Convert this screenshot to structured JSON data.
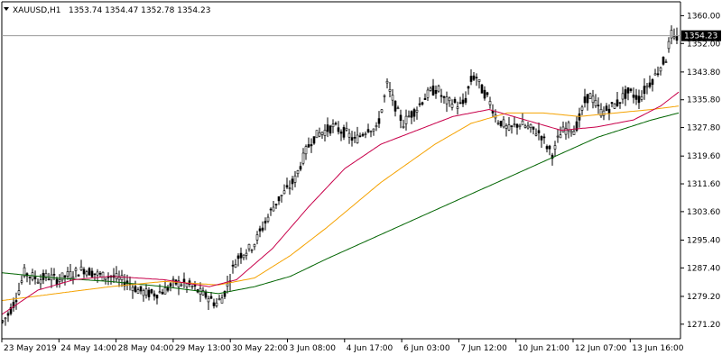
{
  "header": {
    "symbol": "XAUUSD,H1",
    "ohlc": "1353.74 1354.47 1352.78 1354.23"
  },
  "chart_data": {
    "type": "candlestick",
    "title": "XAUUSD,H1",
    "ylim": [
      1267,
      1364
    ],
    "yticks": [
      1360.0,
      1352.0,
      1343.8,
      1335.8,
      1327.8,
      1319.6,
      1311.6,
      1303.6,
      1295.4,
      1287.4,
      1279.2,
      1271.2
    ],
    "ytick_labels": [
      "1360.00",
      "1352.00",
      "1343.80",
      "1335.80",
      "1327.80",
      "1319.60",
      "1311.60",
      "1303.60",
      "1295.40",
      "1287.40",
      "1279.20",
      "1271.20"
    ],
    "current_price": 1354.23,
    "current_price_label": "1354.23",
    "xlabels": [
      "23 May 2019",
      "24 May 14:00",
      "28 May 04:00",
      "29 May 13:00",
      "30 May 22:00",
      "3 Jun 08:00",
      "4 Jun 17:00",
      "6 Jun 03:00",
      "7 Jun 12:00",
      "10 Jun 21:00",
      "12 Jun 07:00",
      "13 Jun 16:00"
    ],
    "price_path": [
      [
        0,
        1272
      ],
      [
        6,
        1274
      ],
      [
        12,
        1277
      ],
      [
        18,
        1281
      ],
      [
        24,
        1286
      ],
      [
        32,
        1285
      ],
      [
        40,
        1284
      ],
      [
        50,
        1285
      ],
      [
        60,
        1284
      ],
      [
        70,
        1285
      ],
      [
        80,
        1286
      ],
      [
        90,
        1287
      ],
      [
        100,
        1286
      ],
      [
        110,
        1285
      ],
      [
        120,
        1285
      ],
      [
        130,
        1284
      ],
      [
        140,
        1283
      ],
      [
        150,
        1281
      ],
      [
        160,
        1280
      ],
      [
        170,
        1280
      ],
      [
        180,
        1281
      ],
      [
        190,
        1283
      ],
      [
        200,
        1283
      ],
      [
        210,
        1282
      ],
      [
        220,
        1280
      ],
      [
        228,
        1279
      ],
      [
        236,
        1277
      ],
      [
        244,
        1279
      ],
      [
        250,
        1283
      ],
      [
        256,
        1288
      ],
      [
        262,
        1291
      ],
      [
        268,
        1292
      ],
      [
        274,
        1293
      ],
      [
        280,
        1295
      ],
      [
        286,
        1298
      ],
      [
        292,
        1301
      ],
      [
        300,
        1305
      ],
      [
        308,
        1308
      ],
      [
        316,
        1310
      ],
      [
        324,
        1313
      ],
      [
        330,
        1317
      ],
      [
        336,
        1321
      ],
      [
        342,
        1324
      ],
      [
        350,
        1326
      ],
      [
        358,
        1327
      ],
      [
        366,
        1328
      ],
      [
        374,
        1327
      ],
      [
        382,
        1326
      ],
      [
        390,
        1324
      ],
      [
        398,
        1326
      ],
      [
        406,
        1328
      ],
      [
        414,
        1327
      ],
      [
        420,
        1333
      ],
      [
        426,
        1340
      ],
      [
        432,
        1336
      ],
      [
        438,
        1332
      ],
      [
        444,
        1329
      ],
      [
        450,
        1331
      ],
      [
        458,
        1333
      ],
      [
        466,
        1336
      ],
      [
        474,
        1338
      ],
      [
        482,
        1339
      ],
      [
        488,
        1336
      ],
      [
        494,
        1335
      ],
      [
        500,
        1335
      ],
      [
        506,
        1334
      ],
      [
        512,
        1335
      ],
      [
        518,
        1341
      ],
      [
        524,
        1343
      ],
      [
        530,
        1339
      ],
      [
        536,
        1337
      ],
      [
        542,
        1334
      ],
      [
        548,
        1330
      ],
      [
        554,
        1329
      ],
      [
        560,
        1327
      ],
      [
        566,
        1328
      ],
      [
        572,
        1329
      ],
      [
        580,
        1328
      ],
      [
        588,
        1327
      ],
      [
        596,
        1326
      ],
      [
        604,
        1322
      ],
      [
        610,
        1320
      ],
      [
        616,
        1325
      ],
      [
        622,
        1327
      ],
      [
        628,
        1328
      ],
      [
        634,
        1327
      ],
      [
        640,
        1331
      ],
      [
        646,
        1336
      ],
      [
        652,
        1337
      ],
      [
        658,
        1334
      ],
      [
        664,
        1332
      ],
      [
        670,
        1333
      ],
      [
        676,
        1334
      ],
      [
        682,
        1335
      ],
      [
        688,
        1337
      ],
      [
        694,
        1338
      ],
      [
        700,
        1337
      ],
      [
        706,
        1336
      ],
      [
        712,
        1339
      ],
      [
        718,
        1341
      ],
      [
        724,
        1343
      ],
      [
        730,
        1346
      ],
      [
        736,
        1348
      ],
      [
        740,
        1355
      ],
      [
        744,
        1353
      ],
      [
        748,
        1354
      ]
    ],
    "ma_slow": [
      [
        0,
        1286
      ],
      [
        60,
        1284.5
      ],
      [
        120,
        1283.5
      ],
      [
        180,
        1282
      ],
      [
        240,
        1280
      ],
      [
        280,
        1282
      ],
      [
        320,
        1285
      ],
      [
        360,
        1290
      ],
      [
        420,
        1297
      ],
      [
        480,
        1304
      ],
      [
        540,
        1311
      ],
      [
        600,
        1318
      ],
      [
        660,
        1325
      ],
      [
        720,
        1330
      ],
      [
        750,
        1332
      ]
    ],
    "ma_mid": [
      [
        0,
        1278
      ],
      [
        60,
        1280
      ],
      [
        120,
        1282
      ],
      [
        180,
        1283.5
      ],
      [
        240,
        1282.5
      ],
      [
        280,
        1284.5
      ],
      [
        320,
        1291
      ],
      [
        360,
        1299
      ],
      [
        420,
        1312
      ],
      [
        480,
        1323
      ],
      [
        520,
        1329
      ],
      [
        560,
        1332
      ],
      [
        600,
        1332
      ],
      [
        640,
        1331
      ],
      [
        680,
        1332
      ],
      [
        720,
        1333
      ],
      [
        750,
        1334
      ]
    ],
    "ma_fast": [
      [
        0,
        1274
      ],
      [
        40,
        1281
      ],
      [
        80,
        1284
      ],
      [
        120,
        1285
      ],
      [
        180,
        1284
      ],
      [
        230,
        1282
      ],
      [
        260,
        1284
      ],
      [
        300,
        1293
      ],
      [
        340,
        1305
      ],
      [
        380,
        1316
      ],
      [
        420,
        1323
      ],
      [
        460,
        1327
      ],
      [
        500,
        1331
      ],
      [
        540,
        1333
      ],
      [
        580,
        1330
      ],
      [
        620,
        1327
      ],
      [
        660,
        1328
      ],
      [
        700,
        1330
      ],
      [
        730,
        1334
      ],
      [
        750,
        1338
      ]
    ],
    "colors": {
      "candle": "#000000",
      "ma_fast": "#c8004a",
      "ma_mid": "#f5a200",
      "ma_slow": "#006400",
      "price_line": "#9a9a9a",
      "axis": "#000000",
      "price_label_bg": "#000000",
      "price_label_text": "#ffffff"
    },
    "grid": false
  }
}
